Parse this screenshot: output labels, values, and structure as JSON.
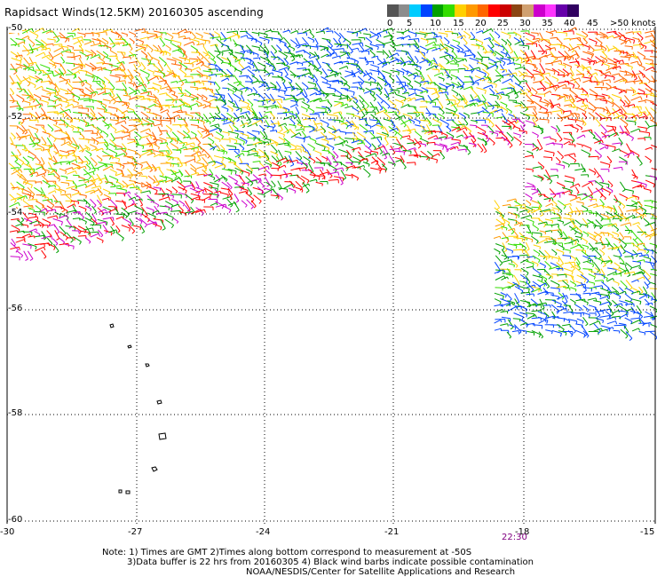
{
  "title": "Rapidsact Winds(12.5KM) 20160305 ascending",
  "legend": {
    "labels": [
      "0",
      "5",
      "10",
      "15",
      "20",
      "25",
      "30",
      "35",
      "40",
      "45",
      ">50 knots"
    ],
    "colors": [
      "#555555",
      "#8c8c8c",
      "#00ccff",
      "#0044ff",
      "#00a000",
      "#33dd00",
      "#ffd000",
      "#ff9900",
      "#ff6600",
      "#ff0000",
      "#cc0000",
      "#8b4513",
      "#d0a070",
      "#cc00cc",
      "#ff33ff",
      "#6600aa",
      "#300060"
    ]
  },
  "axes": {
    "lat_labels": [
      "-50",
      "-52",
      "-54",
      "-56",
      "-58",
      "-60"
    ],
    "lon_labels": [
      "-30",
      "-27",
      "-24",
      "-21",
      "-18",
      "-15"
    ]
  },
  "time_label": "22:30",
  "notes": {
    "line1": "Note: 1) Times are GMT 2)Times along bottom correspond to measurement at -50S",
    "line2": "3)Data buffer is 22 hrs from 20160305 4) Black wind barbs indicate possible contamination",
    "line3": "NOAA/NESDIS/Center for Satellite Applications and Research"
  }
}
